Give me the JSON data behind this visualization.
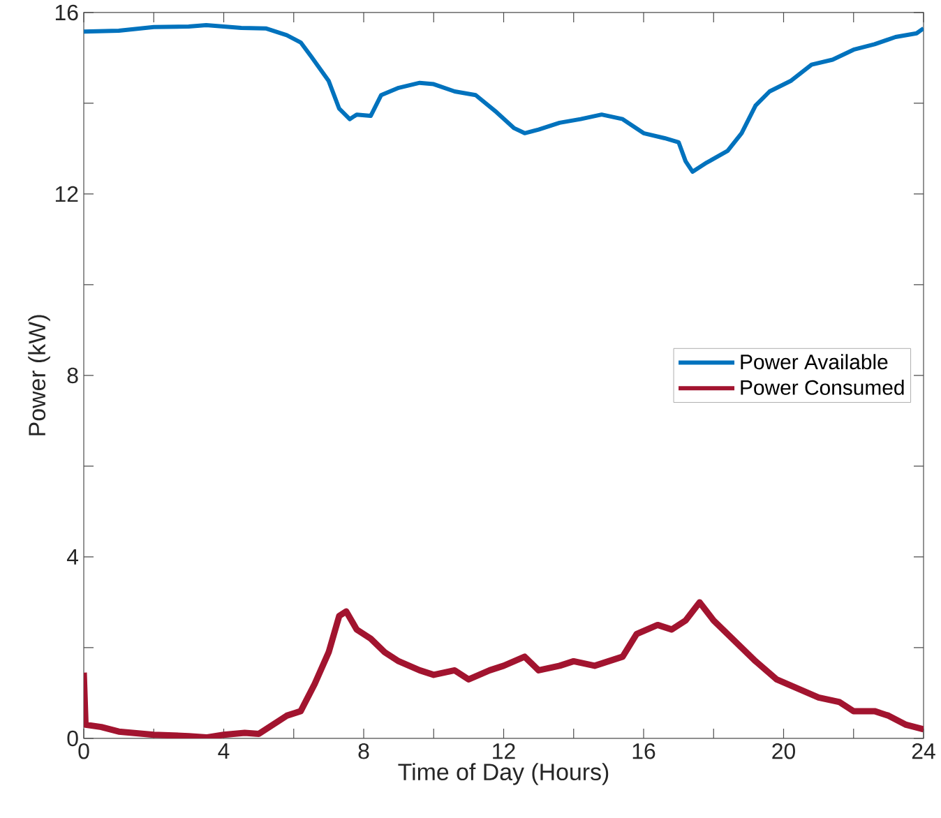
{
  "chart_data": {
    "type": "line",
    "xlabel": "Time of Day (Hours)",
    "ylabel": "Power (kW)",
    "xlim": [
      0,
      24
    ],
    "ylim": [
      0,
      16
    ],
    "xticks": [
      0,
      {
        "value": 2,
        "label": null
      },
      4,
      {
        "value": 6,
        "label": null
      },
      8,
      {
        "value": 10,
        "label": null
      },
      12,
      {
        "value": 14,
        "label": null
      },
      16,
      {
        "value": 18,
        "label": null
      },
      20,
      {
        "value": 22,
        "label": null
      },
      24
    ],
    "yticks": [
      0,
      {
        "value": 2,
        "label": null
      },
      4,
      {
        "value": 6,
        "label": null
      },
      8,
      {
        "value": 10,
        "label": null
      },
      12,
      {
        "value": 14,
        "label": null
      },
      16
    ],
    "legend": "right",
    "series": [
      {
        "name": "Power Available",
        "color": "#0072bd",
        "x": [
          0,
          1,
          2,
          3,
          3.5,
          4.5,
          5.2,
          5.8,
          6.2,
          6.5,
          7,
          7.3,
          7.6,
          7.8,
          8.2,
          8.5,
          9,
          9.6,
          10,
          10.6,
          11.2,
          11.8,
          12.3,
          12.6,
          13,
          13.6,
          14.2,
          14.8,
          15.4,
          16,
          16.6,
          17,
          17.2,
          17.4,
          17.8,
          18.4,
          18.8,
          19.2,
          19.6,
          20.2,
          20.8,
          21.4,
          22,
          22.6,
          23.2,
          23.8,
          24
        ],
        "values": [
          15.58,
          15.6,
          15.68,
          15.69,
          15.72,
          15.66,
          15.65,
          15.5,
          15.34,
          15.03,
          14.49,
          13.88,
          13.65,
          13.75,
          13.72,
          14.18,
          14.34,
          14.45,
          14.42,
          14.26,
          14.18,
          13.8,
          13.45,
          13.34,
          13.42,
          13.57,
          13.65,
          13.75,
          13.65,
          13.34,
          13.23,
          13.14,
          12.72,
          12.49,
          12.69,
          12.95,
          13.34,
          13.95,
          14.26,
          14.49,
          14.85,
          14.96,
          15.18,
          15.3,
          15.46,
          15.54,
          15.65
        ]
      },
      {
        "name": "Power Consumed",
        "color": "#a2142f",
        "x": [
          0,
          0.05,
          0.5,
          1,
          2,
          3,
          3.5,
          4,
          4.6,
          5,
          5.4,
          5.8,
          6.2,
          6.6,
          7,
          7.3,
          7.5,
          7.8,
          8.2,
          8.6,
          9,
          9.6,
          10,
          10.6,
          11,
          11.6,
          12,
          12.6,
          13,
          13.6,
          14,
          14.6,
          15,
          15.4,
          15.8,
          16.4,
          16.8,
          17.2,
          17.6,
          18,
          18.4,
          18.8,
          19.2,
          19.8,
          20.4,
          21,
          21.6,
          22,
          22.6,
          23,
          23.5,
          24
        ],
        "values": [
          1.45,
          0.3,
          0.25,
          0.15,
          0.08,
          0.05,
          0.02,
          0.08,
          0.12,
          0.1,
          0.3,
          0.5,
          0.6,
          1.2,
          1.9,
          2.7,
          2.8,
          2.4,
          2.2,
          1.9,
          1.7,
          1.5,
          1.4,
          1.5,
          1.3,
          1.5,
          1.6,
          1.8,
          1.5,
          1.6,
          1.7,
          1.6,
          1.7,
          1.8,
          2.3,
          2.5,
          2.4,
          2.6,
          3.0,
          2.6,
          2.3,
          2.0,
          1.7,
          1.3,
          1.1,
          0.9,
          0.8,
          0.6,
          0.6,
          0.5,
          0.3,
          0.2
        ]
      }
    ]
  }
}
